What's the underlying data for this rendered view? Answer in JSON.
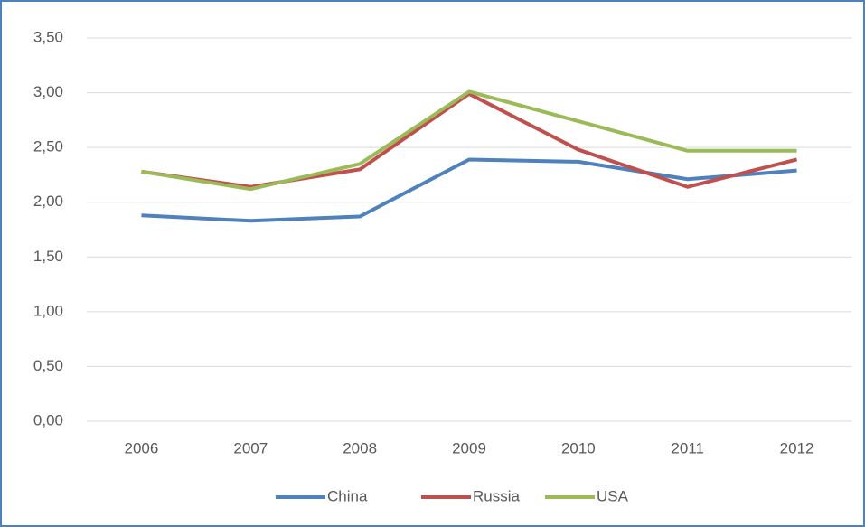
{
  "chart_data": {
    "type": "line",
    "categories": [
      "2006",
      "2007",
      "2008",
      "2009",
      "2010",
      "2011",
      "2012"
    ],
    "series": [
      {
        "name": "China",
        "color": "#4f81bd",
        "values": [
          1.88,
          1.83,
          1.87,
          2.39,
          2.37,
          2.21,
          2.29
        ]
      },
      {
        "name": "Russia",
        "color": "#c0504d",
        "values": [
          2.28,
          2.14,
          2.3,
          2.99,
          2.48,
          2.14,
          2.39
        ]
      },
      {
        "name": "USA",
        "color": "#9bbb59",
        "values": [
          2.28,
          2.12,
          2.35,
          3.01,
          2.74,
          2.47,
          2.47
        ]
      }
    ],
    "ylim": [
      0,
      3.5
    ],
    "yticks": [
      {
        "value": 0,
        "label": "0,00"
      },
      {
        "value": 0.5,
        "label": "0,50"
      },
      {
        "value": 1,
        "label": "1,00"
      },
      {
        "value": 1.5,
        "label": "1,50"
      },
      {
        "value": 2,
        "label": "2,00"
      },
      {
        "value": 2.5,
        "label": "2,50"
      },
      {
        "value": 3,
        "label": "3,00"
      },
      {
        "value": 3.5,
        "label": "3,50"
      }
    ],
    "grid": true,
    "legend": "bottom"
  }
}
